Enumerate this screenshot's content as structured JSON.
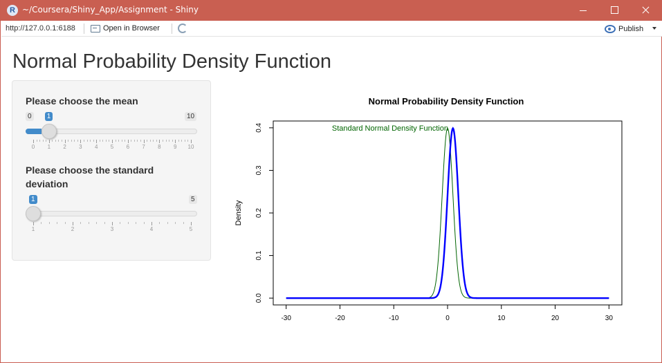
{
  "window": {
    "title": "~/Coursera/Shiny_App/Assignment - Shiny",
    "app_icon_letter": "R",
    "titlebar_color": "#c95f51"
  },
  "toolbar": {
    "url": "http://127.0.0.1:6188",
    "open_browser_label": "Open in Browser",
    "publish_label": "Publish",
    "icons": [
      "open-browser-icon",
      "refresh-icon",
      "publish-icon",
      "caret-down-icon"
    ]
  },
  "page": {
    "title": "Normal Probability Density Function"
  },
  "inputs": {
    "mean": {
      "label": "Please choose the mean",
      "min": 0,
      "max": 10,
      "value": 1,
      "min_label": "0",
      "max_label": "10",
      "value_label": "1",
      "ticks": [
        "0",
        "1",
        "2",
        "3",
        "4",
        "5",
        "6",
        "7",
        "8",
        "9",
        "10"
      ]
    },
    "sd": {
      "label_line1": "Please choose the standard",
      "label_line2": "deviation",
      "min": 1,
      "max": 5,
      "value": 1,
      "max_label": "5",
      "value_label": "1",
      "ticks": [
        "1",
        "2",
        "3",
        "4",
        "5"
      ]
    },
    "accent_color": "#428bca"
  },
  "chart_data": {
    "type": "line",
    "title": "Normal Probability Density Function",
    "xlabel": "",
    "ylabel": "Density",
    "xlim": [
      -30,
      30
    ],
    "ylim": [
      0,
      0.4
    ],
    "x_ticks": [
      "-30",
      "-20",
      "-10",
      "0",
      "10",
      "20",
      "30"
    ],
    "y_ticks": [
      "0.0",
      "0.1",
      "0.2",
      "0.3",
      "0.4"
    ],
    "annotation": "Standard Normal Density Function",
    "series": [
      {
        "name": "Standard Normal Density Function",
        "color": "#006400",
        "mean": 0,
        "sd": 1,
        "x": [
          -30,
          -4,
          -3,
          -2,
          -1.5,
          -1,
          -0.5,
          0,
          0.5,
          1,
          1.5,
          2,
          3,
          4,
          30
        ],
        "y": [
          0,
          0.0001,
          0.0044,
          0.054,
          0.1295,
          0.242,
          0.3521,
          0.3989,
          0.3521,
          0.242,
          0.1295,
          0.054,
          0.0044,
          0.0001,
          0
        ]
      },
      {
        "color": "#0000ff",
        "mean": 1,
        "sd": 1,
        "x": [
          -30,
          -3,
          -2,
          -1,
          -0.5,
          0,
          0.5,
          1,
          1.5,
          2,
          2.5,
          3,
          4,
          5,
          30
        ],
        "y": [
          0,
          0.0001,
          0.0044,
          0.054,
          0.1295,
          0.242,
          0.3521,
          0.3989,
          0.3521,
          0.242,
          0.1295,
          0.054,
          0.0044,
          0.0001,
          0
        ]
      }
    ]
  }
}
